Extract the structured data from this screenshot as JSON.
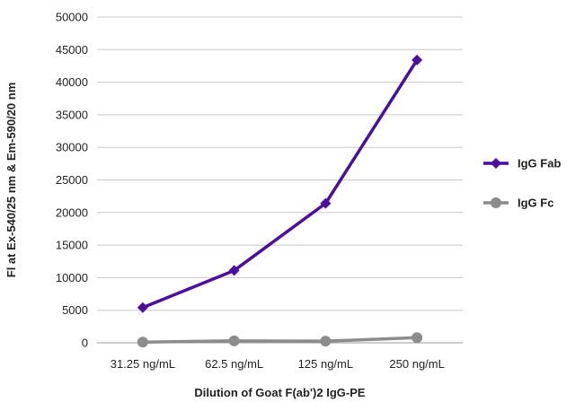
{
  "chart_data": {
    "type": "line",
    "title": "",
    "xlabel": "Dilution of Goat F(ab')2 IgG-PE",
    "ylabel": "Fl at Ex-540/25 nm & Em-590/20 nm",
    "categories": [
      "31.25 ng/mL",
      "62.5 ng/mL",
      "125 ng/mL",
      "250 ng/mL"
    ],
    "ylim": [
      0,
      50000
    ],
    "yticks": [
      0,
      5000,
      10000,
      15000,
      20000,
      25000,
      30000,
      35000,
      40000,
      45000,
      50000
    ],
    "grid": "horizontal",
    "legend_position": "right",
    "series": [
      {
        "name": "IgG Fab",
        "marker": "diamond",
        "color": "#4b0fa0",
        "values": [
          5400,
          11100,
          21400,
          43400
        ]
      },
      {
        "name": "IgG Fc",
        "marker": "circle",
        "color": "#8c8c8c",
        "values": [
          100,
          300,
          250,
          800
        ]
      }
    ]
  }
}
